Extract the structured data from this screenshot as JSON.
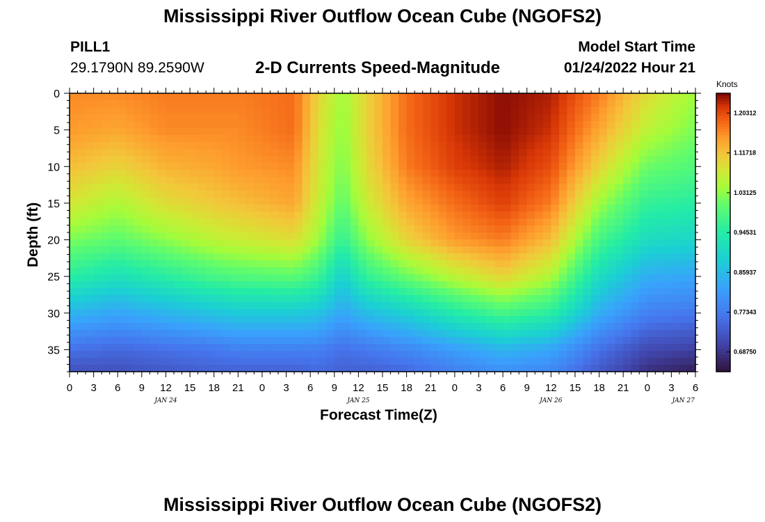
{
  "page": {
    "title": "Mississippi River Outflow Ocean Cube (NGOFS2)",
    "title_repeat": "Mississippi River Outflow Ocean Cube (NGOFS2)",
    "station": "PILL1",
    "coords": "29.1790N  89.2590W",
    "subtitle": "2-D Currents Speed-Magnitude",
    "model_start_label": "Model Start Time",
    "model_start_value": "01/24/2022 Hour 21"
  },
  "chart_data": {
    "type": "heatmap",
    "title": "2-D Currents Speed-Magnitude",
    "xlabel": "Forecast Time(Z)",
    "ylabel": "Depth (ft)",
    "x_range_hours": [
      0,
      78
    ],
    "ylim": [
      0,
      38
    ],
    "x_ticks": [
      "0",
      "3",
      "6",
      "9",
      "12",
      "15",
      "18",
      "21",
      "0",
      "3",
      "6",
      "9",
      "12",
      "15",
      "18",
      "21",
      "0",
      "3",
      "6",
      "9",
      "12",
      "15",
      "18",
      "21",
      "0",
      "3",
      "6"
    ],
    "date_labels": [
      "JAN 24",
      "JAN 25",
      "JAN 26",
      "JAN 27"
    ],
    "y_ticks": [
      0,
      5,
      10,
      15,
      20,
      25,
      30,
      35
    ],
    "colorbar": {
      "label": "Knots",
      "ticks": [
        "1.20312",
        "1.11718",
        "1.03125",
        "0.94531",
        "0.85937",
        "0.77343",
        "0.68750"
      ],
      "range": [
        0.645,
        1.246
      ]
    },
    "speed_surface_knots": {
      "comment": "approximate speed (knots) by forecast hour and depth (ft)",
      "depths": [
        0,
        5,
        10,
        15,
        20,
        25,
        30,
        35,
        38
      ],
      "columns": [
        {
          "hour": 0,
          "values": [
            1.16,
            1.15,
            1.12,
            1.08,
            1.02,
            0.95,
            0.85,
            0.76,
            0.72
          ]
        },
        {
          "hour": 6,
          "values": [
            1.16,
            1.14,
            1.1,
            1.05,
            1.0,
            0.92,
            0.83,
            0.75,
            0.72
          ]
        },
        {
          "hour": 12,
          "values": [
            1.17,
            1.16,
            1.13,
            1.09,
            1.03,
            0.95,
            0.85,
            0.76,
            0.73
          ]
        },
        {
          "hour": 18,
          "values": [
            1.17,
            1.16,
            1.14,
            1.11,
            1.06,
            0.98,
            0.87,
            0.77,
            0.74
          ]
        },
        {
          "hour": 21,
          "values": [
            1.17,
            1.16,
            1.15,
            1.12,
            1.07,
            0.99,
            0.88,
            0.78,
            0.74
          ]
        },
        {
          "hour": 28,
          "values": [
            1.18,
            1.18,
            1.16,
            1.14,
            1.09,
            1.0,
            0.88,
            0.78,
            0.74
          ]
        },
        {
          "hour": 31,
          "values": [
            1.1,
            1.09,
            1.08,
            1.07,
            1.04,
            0.97,
            0.87,
            0.78,
            0.75
          ]
        },
        {
          "hour": 34,
          "values": [
            1.04,
            1.03,
            1.02,
            1.0,
            0.96,
            0.89,
            0.83,
            0.76,
            0.74
          ]
        },
        {
          "hour": 37,
          "values": [
            1.1,
            1.1,
            1.09,
            1.07,
            1.03,
            0.96,
            0.86,
            0.77,
            0.74
          ]
        },
        {
          "hour": 42,
          "values": [
            1.18,
            1.18,
            1.17,
            1.14,
            1.1,
            1.01,
            0.89,
            0.79,
            0.75
          ]
        },
        {
          "hour": 48,
          "values": [
            1.22,
            1.22,
            1.21,
            1.18,
            1.15,
            1.06,
            0.94,
            0.82,
            0.78
          ]
        },
        {
          "hour": 54,
          "values": [
            1.24,
            1.24,
            1.23,
            1.21,
            1.17,
            1.1,
            0.98,
            0.85,
            0.8
          ]
        },
        {
          "hour": 60,
          "values": [
            1.23,
            1.22,
            1.2,
            1.17,
            1.12,
            1.05,
            0.95,
            0.83,
            0.79
          ]
        },
        {
          "hour": 66,
          "values": [
            1.17,
            1.14,
            1.1,
            1.04,
            0.98,
            0.91,
            0.84,
            0.76,
            0.73
          ]
        },
        {
          "hour": 72,
          "values": [
            1.09,
            1.06,
            1.01,
            0.96,
            0.91,
            0.84,
            0.78,
            0.71,
            0.68
          ]
        },
        {
          "hour": 78,
          "values": [
            1.04,
            1.02,
            0.99,
            0.95,
            0.9,
            0.83,
            0.77,
            0.7,
            0.66
          ]
        }
      ]
    }
  }
}
